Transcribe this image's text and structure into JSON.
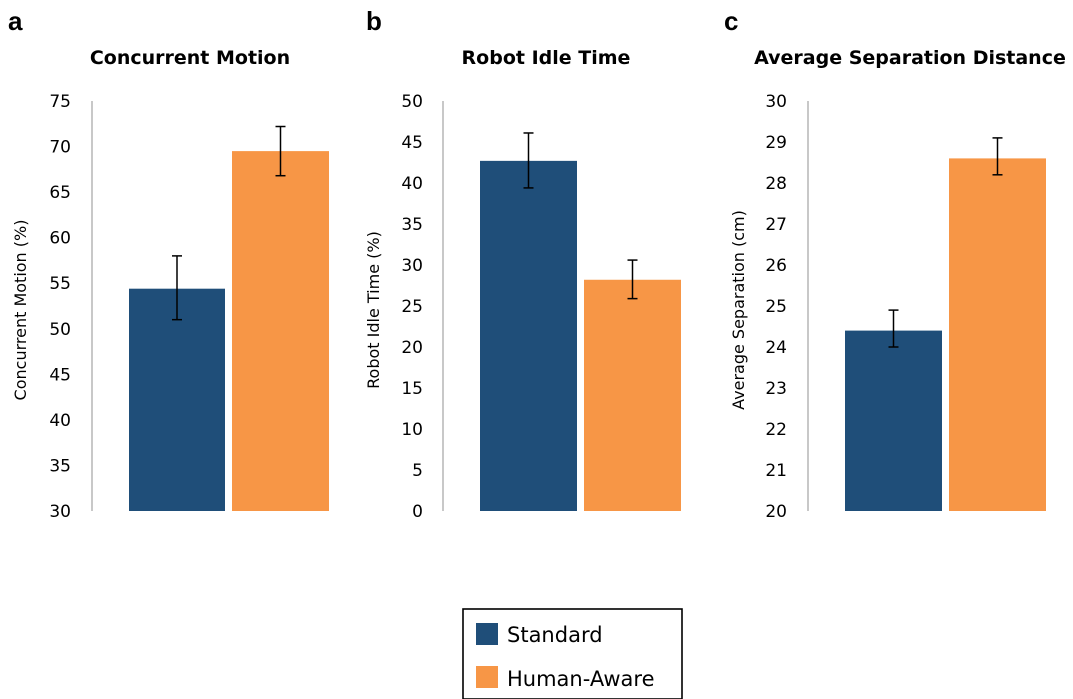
{
  "legend": {
    "entries": [
      {
        "label": "Standard",
        "color": "#1f4e79"
      },
      {
        "label": "Human-Aware",
        "color": "#f79646"
      }
    ]
  },
  "chart_data": [
    {
      "panel": "a",
      "type": "bar",
      "title": "Concurrent Motion",
      "ylabel": "Concurrent Motion (%)",
      "xlabel": "",
      "ylim": [
        30,
        75
      ],
      "yticks": [
        30,
        35,
        40,
        45,
        50,
        55,
        60,
        65,
        70,
        75
      ],
      "grid": false,
      "legend_position": "bottom-center",
      "series": [
        {
          "name": "Standard",
          "color": "#1f4e79",
          "value": 54.4,
          "error": [
            51.0,
            58.0
          ]
        },
        {
          "name": "Human-Aware",
          "color": "#f79646",
          "value": 69.5,
          "error": [
            66.8,
            72.2
          ]
        }
      ]
    },
    {
      "panel": "b",
      "type": "bar",
      "title": "Robot Idle Time",
      "ylabel": "Robot Idle Time (%)",
      "xlabel": "",
      "ylim": [
        0,
        50
      ],
      "yticks": [
        0,
        5,
        10,
        15,
        20,
        25,
        30,
        35,
        40,
        45,
        50
      ],
      "grid": false,
      "legend_position": "bottom-center",
      "series": [
        {
          "name": "Standard",
          "color": "#1f4e79",
          "value": 42.7,
          "error": [
            39.4,
            46.1
          ]
        },
        {
          "name": "Human-Aware",
          "color": "#f79646",
          "value": 28.2,
          "error": [
            25.9,
            30.6
          ]
        }
      ]
    },
    {
      "panel": "c",
      "type": "bar",
      "title": "Average Separation Distance",
      "ylabel": "Average Separation (cm)",
      "xlabel": "",
      "ylim": [
        20,
        30
      ],
      "yticks": [
        20,
        21,
        22,
        23,
        24,
        25,
        26,
        27,
        28,
        29,
        30
      ],
      "grid": false,
      "legend_position": "bottom-center",
      "series": [
        {
          "name": "Standard",
          "color": "#1f4e79",
          "value": 24.4,
          "error": [
            24.0,
            24.9
          ]
        },
        {
          "name": "Human-Aware",
          "color": "#f79646",
          "value": 28.6,
          "error": [
            28.2,
            29.1
          ]
        }
      ]
    }
  ]
}
